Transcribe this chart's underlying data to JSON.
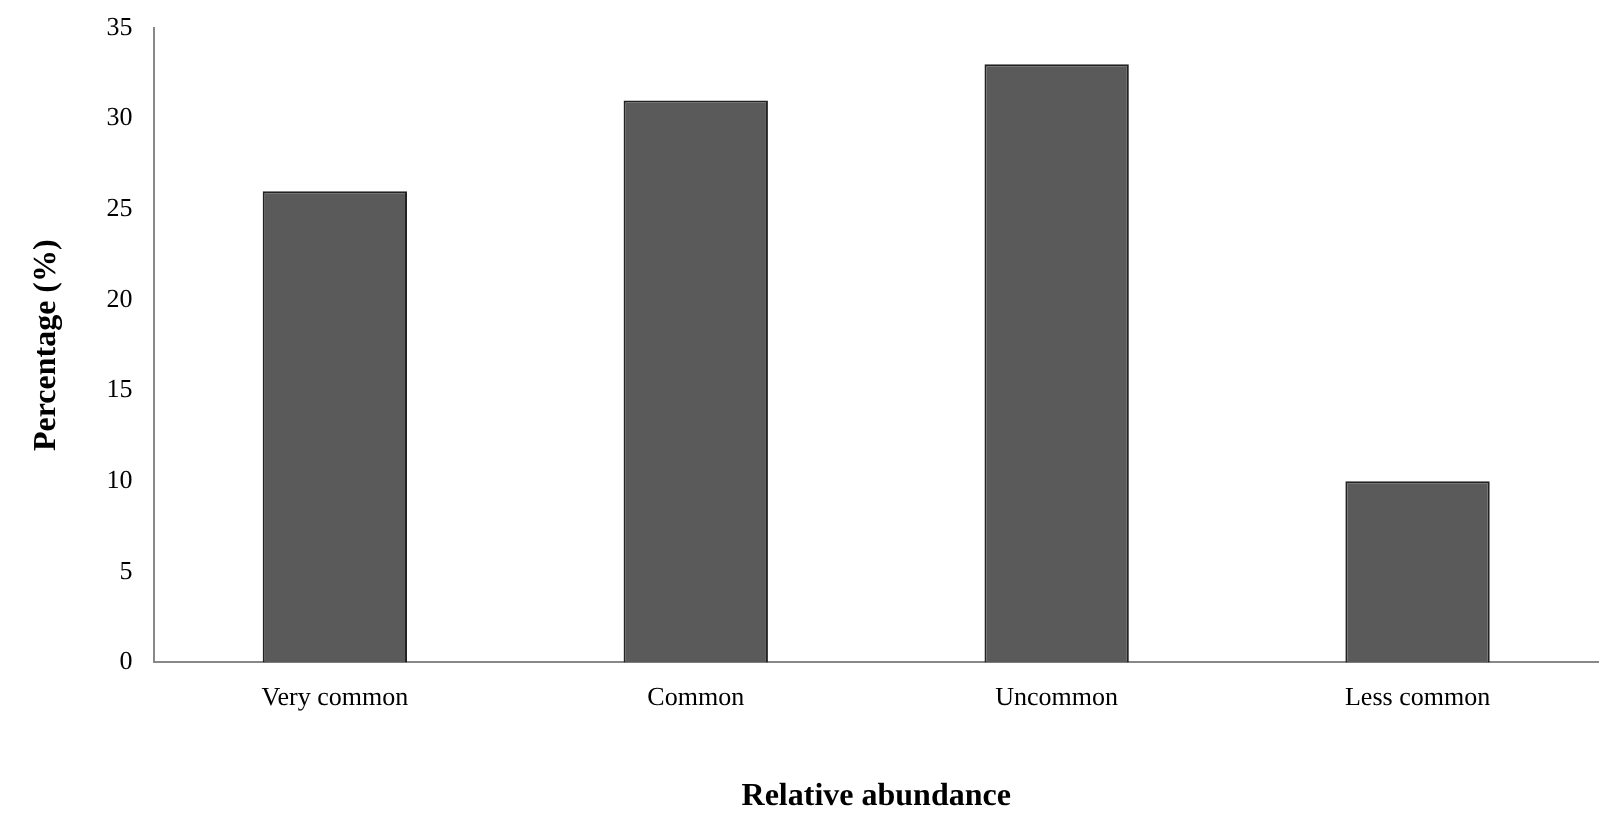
{
  "chart_data": {
    "type": "bar",
    "xlabel": "Relative abundance",
    "ylabel": "Percentage (%)",
    "categories": [
      "Very common",
      "Common",
      "Uncommon",
      "Less common"
    ],
    "values": [
      26,
      31,
      33,
      10
    ],
    "color": "#5a5a5a",
    "ylim": [
      0,
      35
    ],
    "yticks": [
      0,
      5,
      10,
      15,
      20,
      25,
      30,
      35
    ],
    "grid": false,
    "legend": false
  }
}
